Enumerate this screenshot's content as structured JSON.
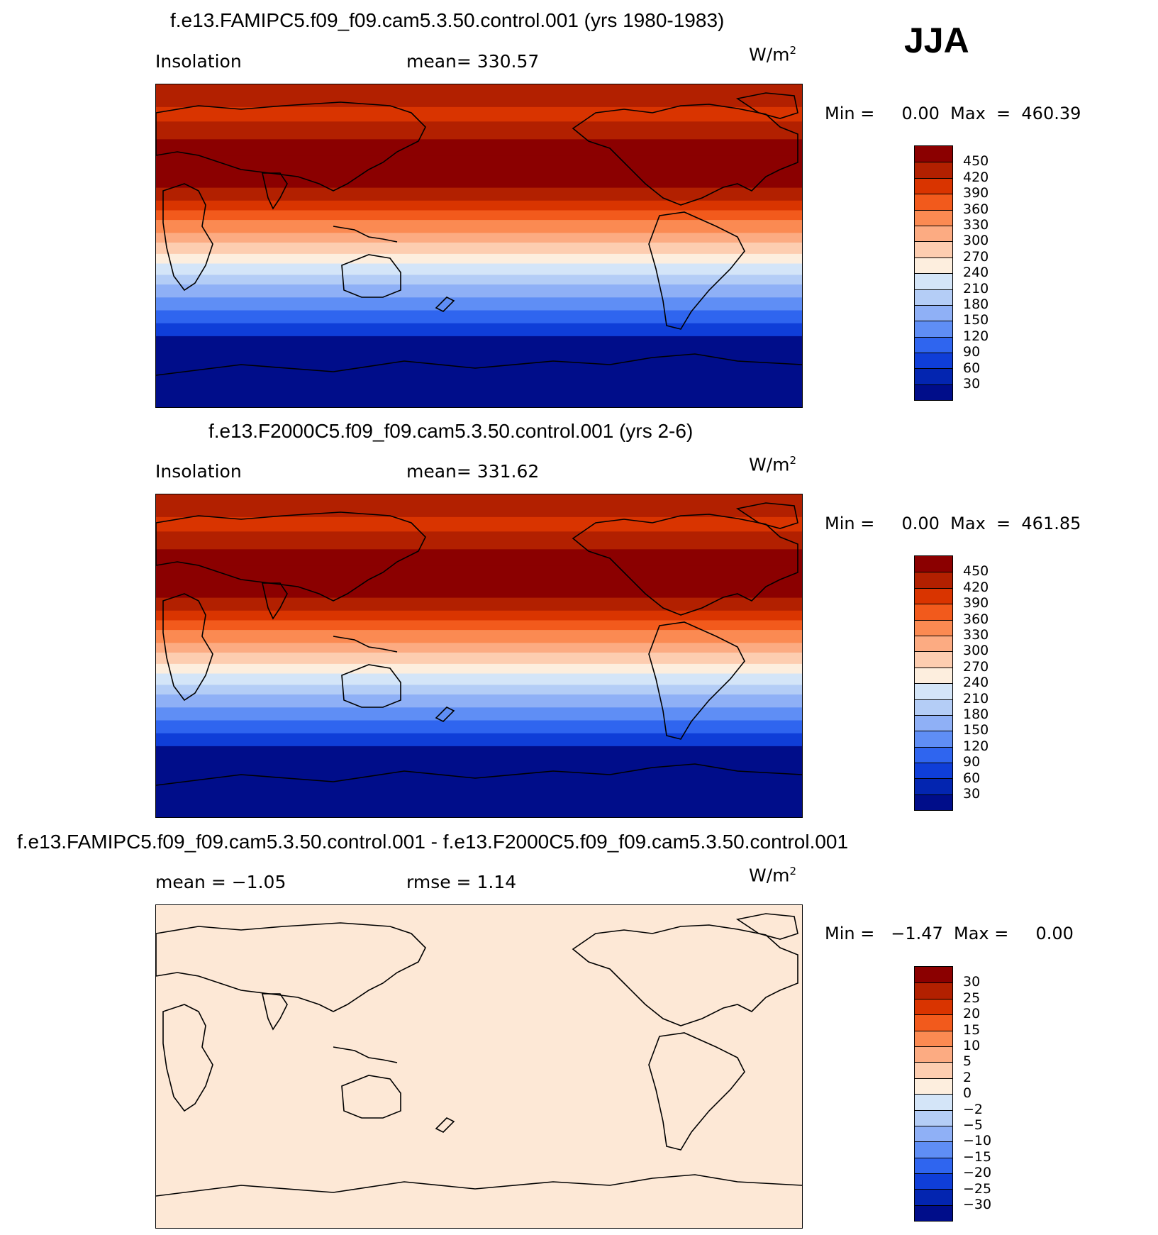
{
  "season": "JJA",
  "panels": [
    {
      "title": "f.e13.FAMIPC5.f09_f09.cam5.3.50.control.001 (yrs 1980-1983)",
      "left_label": "Insolation",
      "center_label": "mean=  330.57",
      "units": "W/m",
      "units_sup": "2",
      "minmax": "Min =     0.00  Max  =  460.39",
      "field": "insolation",
      "levels": [
        "450",
        "420",
        "390",
        "360",
        "330",
        "300",
        "270",
        "240",
        "210",
        "180",
        "150",
        "120",
        "90",
        "60",
        "30"
      ],
      "colors": [
        "#8b0000",
        "#b22000",
        "#d93400",
        "#f25a1c",
        "#fb8a52",
        "#fcab82",
        "#fdcdb0",
        "#fdeede",
        "#d4e5f8",
        "#b4cdf6",
        "#8fb0f6",
        "#5f8ef5",
        "#2f65ef",
        "#0f3ed8",
        "#0325b0",
        "#000d8a"
      ]
    },
    {
      "title": "f.e13.F2000C5.f09_f09.cam5.3.50.control.001 (yrs 2-6)",
      "left_label": "Insolation",
      "center_label": "mean=  331.62",
      "units": "W/m",
      "units_sup": "2",
      "minmax": "Min =     0.00  Max  =  461.85",
      "field": "insolation",
      "levels": [
        "450",
        "420",
        "390",
        "360",
        "330",
        "300",
        "270",
        "240",
        "210",
        "180",
        "150",
        "120",
        "90",
        "60",
        "30"
      ],
      "colors": [
        "#8b0000",
        "#b22000",
        "#d93400",
        "#f25a1c",
        "#fb8a52",
        "#fcab82",
        "#fdcdb0",
        "#fdeede",
        "#d4e5f8",
        "#b4cdf6",
        "#8fb0f6",
        "#5f8ef5",
        "#2f65ef",
        "#0f3ed8",
        "#0325b0",
        "#000d8a"
      ]
    },
    {
      "title": "f.e13.FAMIPC5.f09_f09.cam5.3.50.control.001 - f.e13.F2000C5.f09_f09.cam5.3.50.control.001",
      "left_label": "mean =   −1.05",
      "center_label": "rmse =     1.14",
      "units": "W/m",
      "units_sup": "2",
      "minmax": "Min =   −1.47  Max =     0.00",
      "field": "difference",
      "fill_color": "#fde8d6",
      "levels": [
        "30",
        "25",
        "20",
        "15",
        "10",
        "5",
        "2",
        "0",
        "−2",
        "−5",
        "−10",
        "−15",
        "−20",
        "−25",
        "−30"
      ],
      "colors": [
        "#8b0000",
        "#b22000",
        "#d93400",
        "#f25a1c",
        "#fb8a52",
        "#fcab82",
        "#fdcdb0",
        "#fdeede",
        "#d4e5f8",
        "#b4cdf6",
        "#8fb0f6",
        "#5f8ef5",
        "#2f65ef",
        "#0f3ed8",
        "#0325b0",
        "#000d8a"
      ]
    }
  ]
}
